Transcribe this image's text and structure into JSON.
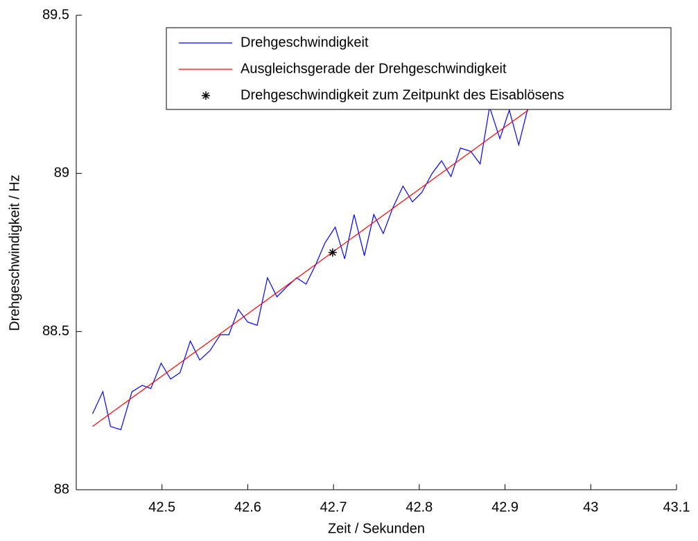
{
  "chart_data": {
    "type": "line",
    "xlabel": "Zeit / Sekunden",
    "ylabel": "Drehgeschwindigkeit / Hz",
    "xlim": [
      42.4,
      43.1
    ],
    "xticks": [
      42.5,
      42.6,
      42.7,
      42.8,
      42.9,
      43,
      43.1
    ],
    "ylim": [
      88,
      89.5
    ],
    "yticks": [
      88,
      88.5,
      89,
      89.5
    ],
    "grid": false,
    "legend": "northeast",
    "series": [
      {
        "name": "Drehgeschwindigkeit",
        "color": "#0000ff",
        "x": [
          42.419,
          42.431,
          42.44,
          42.452,
          42.465,
          42.477,
          42.487,
          42.499,
          42.51,
          42.521,
          42.533,
          42.544,
          42.556,
          42.568,
          42.578,
          42.589,
          42.6,
          42.611,
          42.623,
          42.634,
          42.645,
          42.657,
          42.668,
          42.679,
          42.69,
          42.702,
          42.713,
          42.724,
          42.736,
          42.747,
          42.758,
          42.769,
          42.781,
          42.792,
          42.803,
          42.815,
          42.826,
          42.837,
          42.848,
          42.86,
          42.871,
          42.882,
          42.894,
          42.905,
          42.916,
          42.927
        ],
        "values": [
          88.24,
          88.31,
          88.2,
          88.19,
          88.31,
          88.33,
          88.32,
          88.4,
          88.35,
          88.37,
          88.47,
          88.41,
          88.44,
          88.49,
          88.49,
          88.57,
          88.53,
          88.52,
          88.67,
          88.61,
          88.64,
          88.67,
          88.65,
          88.71,
          88.78,
          88.83,
          88.73,
          88.87,
          88.74,
          88.87,
          88.81,
          88.89,
          88.96,
          88.91,
          88.94,
          89.0,
          89.04,
          88.99,
          89.08,
          89.07,
          89.03,
          89.21,
          89.11,
          89.2,
          89.09,
          89.21
        ]
      },
      {
        "name": "Ausgleichsgerade der Drehgeschwindigkeit",
        "color": "#ff0000",
        "x": [
          42.419,
          42.927
        ],
        "values": [
          88.2,
          89.2
        ]
      },
      {
        "name": "Drehgeschwindigkeit zum Zeitpunkt des Eisablösens",
        "color": "#000000",
        "marker": "*",
        "x": [
          42.699
        ],
        "values": [
          88.75
        ]
      }
    ]
  }
}
